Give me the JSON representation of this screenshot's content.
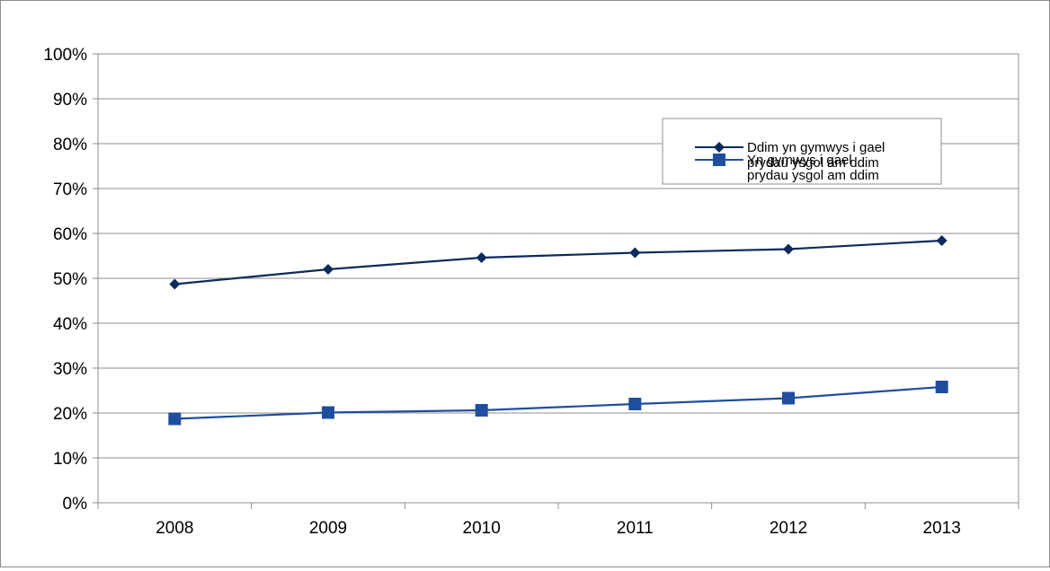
{
  "chart_data": {
    "type": "line",
    "categories": [
      "2008",
      "2009",
      "2010",
      "2011",
      "2012",
      "2013"
    ],
    "ylim": [
      0,
      1
    ],
    "y_ticks": [
      "0%",
      "10%",
      "20%",
      "30%",
      "40%",
      "50%",
      "60%",
      "70%",
      "80%",
      "90%",
      "100%"
    ],
    "grid": true,
    "legend_position": "upper-right",
    "series": [
      {
        "name": "Ddim yn gymwys i gael prydau ysgol am ddim",
        "legend_lines": [
          "Ddim yn gymwys i gael",
          "prydau ysgol am ddim"
        ],
        "values": [
          0.487,
          0.52,
          0.546,
          0.557,
          0.565,
          0.584
        ],
        "color": "#0d2a5c",
        "marker": "diamond"
      },
      {
        "name": "Yn gymwys i gael prydau ysgol am ddim",
        "legend_lines": [
          "Yn gymwys i gael",
          "prydau ysgol am ddim"
        ],
        "values": [
          0.187,
          0.201,
          0.206,
          0.22,
          0.233,
          0.258
        ],
        "color": "#1f4e9e",
        "marker": "square"
      }
    ]
  }
}
